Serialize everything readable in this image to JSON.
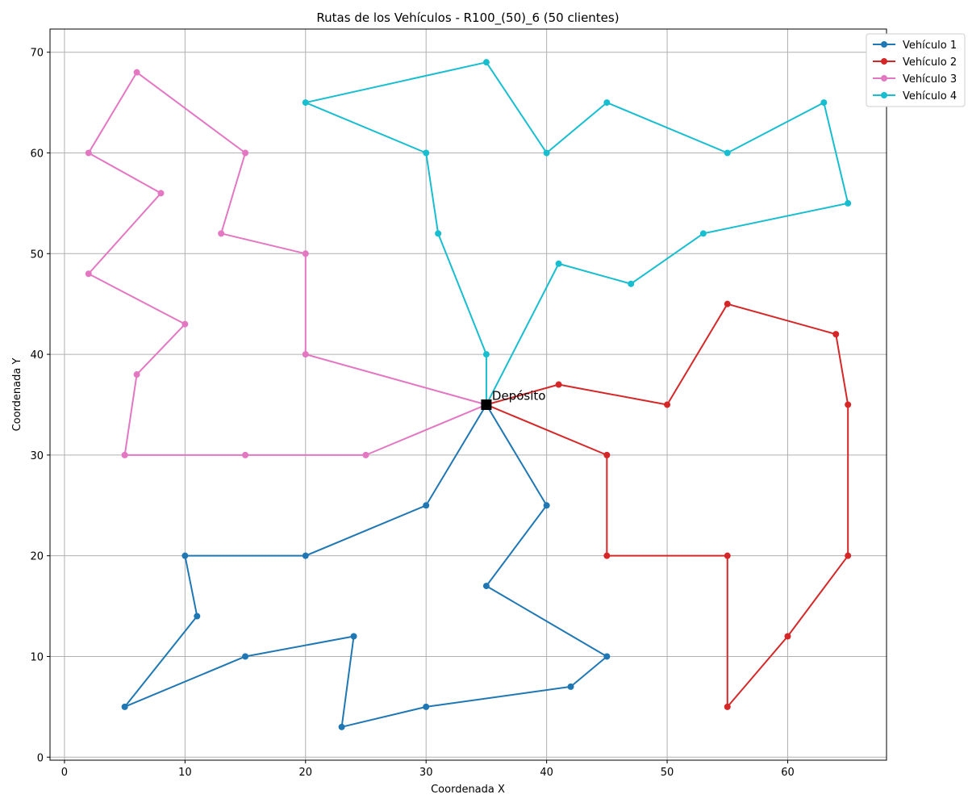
{
  "chart_data": {
    "type": "line",
    "title": "Rutas de los Vehículos - R100_(50)_6 (50 clientes)",
    "xlabel": "Coordenada X",
    "ylabel": "Coordenada Y",
    "xlim": [
      -1.2,
      68.2
    ],
    "ylim": [
      -0.3,
      72.3
    ],
    "xticks": [
      0,
      10,
      20,
      30,
      40,
      50,
      60
    ],
    "yticks": [
      0,
      10,
      20,
      30,
      40,
      50,
      60,
      70
    ],
    "grid": true,
    "legend_position": "top-right",
    "depot": {
      "label": "Depósito",
      "x": 35,
      "y": 35,
      "color": "#000000"
    },
    "series": [
      {
        "name": "Vehículo 1",
        "color": "#1f77b4",
        "x": [
          35,
          30,
          20,
          10,
          11,
          5,
          15,
          24,
          23,
          30,
          42,
          45,
          35,
          40,
          35
        ],
        "y": [
          35,
          25,
          20,
          20,
          14,
          5,
          10,
          12,
          3,
          5,
          7,
          10,
          17,
          25,
          35
        ]
      },
      {
        "name": "Vehículo 2",
        "color": "#d62728",
        "x": [
          35,
          45,
          45,
          55,
          55,
          60,
          65,
          65,
          64,
          55,
          50,
          41,
          35
        ],
        "y": [
          35,
          30,
          20,
          20,
          5,
          12,
          20,
          35,
          42,
          45,
          35,
          37,
          35
        ]
      },
      {
        "name": "Vehículo 3",
        "color": "#e377c2",
        "x": [
          35,
          20,
          20,
          13,
          15,
          6,
          2,
          8,
          2,
          10,
          6,
          5,
          15,
          25,
          35
        ],
        "y": [
          35,
          40,
          50,
          52,
          60,
          68,
          60,
          56,
          48,
          43,
          38,
          30,
          30,
          30,
          35
        ]
      },
      {
        "name": "Vehículo 4",
        "color": "#17becf",
        "x": [
          35,
          35,
          31,
          30,
          20,
          35,
          40,
          45,
          55,
          63,
          65,
          53,
          47,
          41,
          35
        ],
        "y": [
          35,
          40,
          52,
          60,
          65,
          69,
          60,
          65,
          60,
          65,
          55,
          52,
          47,
          49,
          35
        ]
      }
    ]
  }
}
